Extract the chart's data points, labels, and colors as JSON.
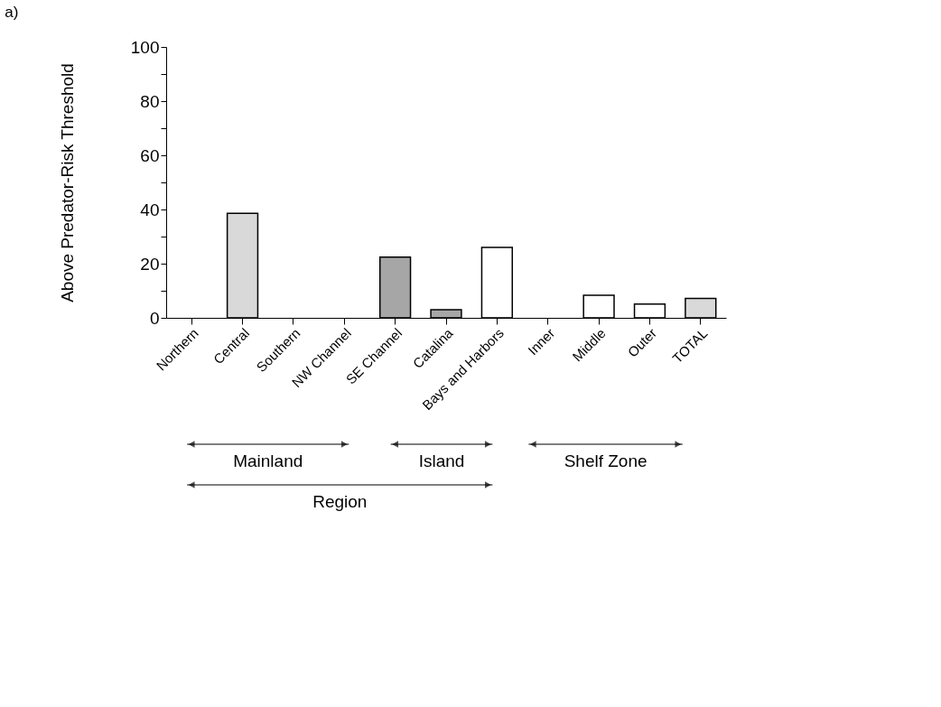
{
  "chart_data": {
    "type": "bar",
    "title": "a)",
    "ylabel": "Above Predator-Risk Threshold",
    "categories": [
      "Northern",
      "Central",
      "Southern",
      "NW Channel",
      "SE Channel",
      "Catalina",
      "Bays and Harbors",
      "Inner",
      "Middle",
      "Outer",
      "TOTAL"
    ],
    "values": [
      0,
      38.6,
      0,
      0,
      22.4,
      3.0,
      26.0,
      0,
      8.3,
      5.1,
      7.2
    ],
    "colors": [
      "#ffffff",
      "#d9d9d9",
      "#ffffff",
      "#ffffff",
      "#a6a6a6",
      "#a6a6a6",
      "#ffffff",
      "#ffffff",
      "#ffffff",
      "#ffffff",
      "#d9d9d9"
    ],
    "ylim": [
      0,
      100
    ],
    "yticks": [
      0,
      {
        "value": 10,
        "label": null
      },
      20,
      {
        "value": 30,
        "label": null
      },
      40,
      {
        "value": 50,
        "label": null
      },
      60,
      {
        "value": 70,
        "label": null
      },
      80,
      {
        "value": 90,
        "label": null
      },
      100
    ],
    "annotations": [
      "Mainland",
      "Island",
      "Shelf Zone",
      "Region"
    ],
    "grid": false
  }
}
